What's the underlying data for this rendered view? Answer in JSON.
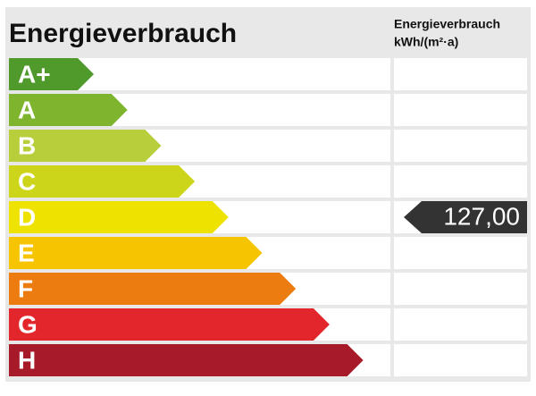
{
  "header": {
    "title": "Energieverbrauch",
    "column_title": "Energieverbrauch",
    "column_unit": "kWh/(m²·a)"
  },
  "classes": [
    {
      "label": "A+",
      "color": "#4f9a2b"
    },
    {
      "label": "A",
      "color": "#7eb42e"
    },
    {
      "label": "B",
      "color": "#b8cf3b"
    },
    {
      "label": "C",
      "color": "#cdd51a"
    },
    {
      "label": "D",
      "color": "#eee200",
      "value": "127,00"
    },
    {
      "label": "E",
      "color": "#f6c400"
    },
    {
      "label": "F",
      "color": "#ec7c10"
    },
    {
      "label": "G",
      "color": "#e2262b"
    },
    {
      "label": "H",
      "color": "#a61a2a"
    }
  ]
}
